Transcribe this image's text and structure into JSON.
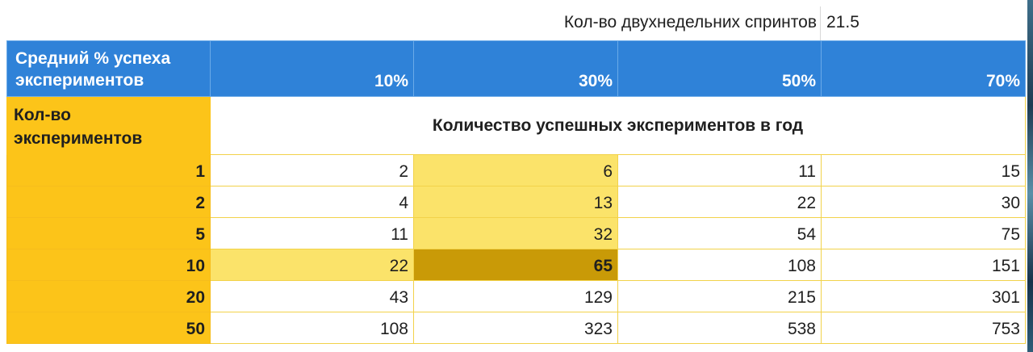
{
  "top": {
    "sprints_label": "Кол-во двухнедельних спринтов",
    "sprints_value": "21.5"
  },
  "header": {
    "corner_line1": "Средний % успеха",
    "corner_line2": "экспериментов",
    "columns": [
      "10%",
      "30%",
      "50%",
      "70%"
    ]
  },
  "subheader": {
    "label_line1": "Кол-во",
    "label_line2": "экспериментов",
    "caption": "Количество успешных экспериментов в год"
  },
  "rows": [
    {
      "n": "1",
      "values": [
        "2",
        "6",
        "11",
        "15"
      ]
    },
    {
      "n": "2",
      "values": [
        "4",
        "13",
        "22",
        "30"
      ]
    },
    {
      "n": "5",
      "values": [
        "11",
        "32",
        "54",
        "75"
      ]
    },
    {
      "n": "10",
      "values": [
        "22",
        "65",
        "108",
        "151"
      ]
    },
    {
      "n": "20",
      "values": [
        "43",
        "129",
        "215",
        "301"
      ]
    },
    {
      "n": "50",
      "values": [
        "108",
        "323",
        "538",
        "753"
      ]
    }
  ],
  "colors": {
    "header_blue": "#2f82d8",
    "label_yellow": "#fcc419",
    "highlight_light": "#fbe36a",
    "highlight_dark": "#c99a07"
  }
}
